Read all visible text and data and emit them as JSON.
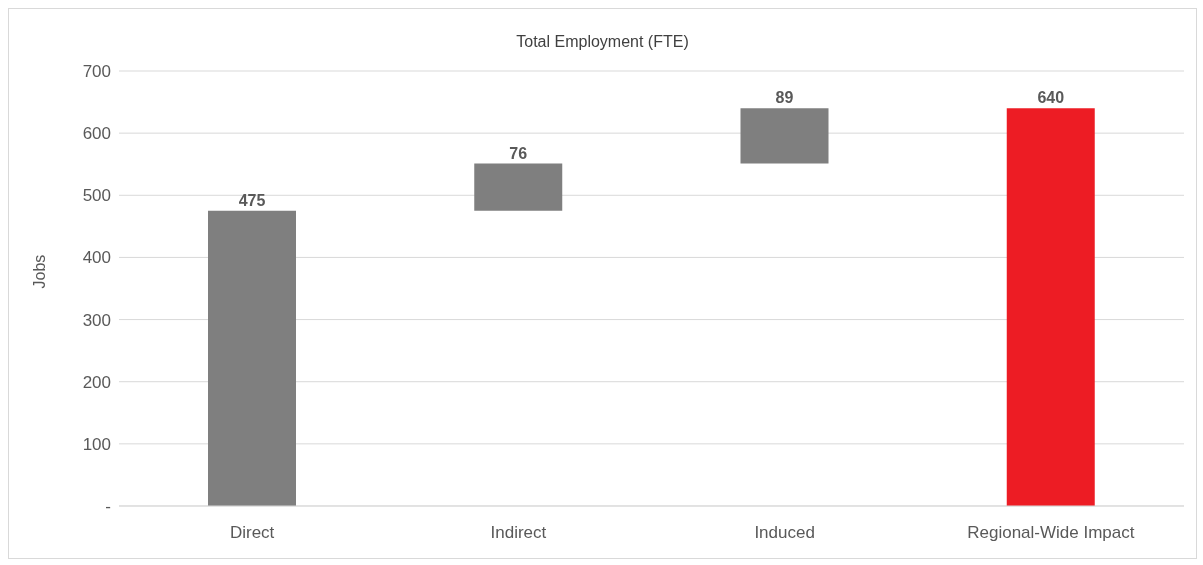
{
  "chart_data": {
    "type": "bar",
    "title": "Total Employment (FTE)",
    "ylabel": "Jobs",
    "categories": [
      "Direct",
      "Indirect",
      "Induced",
      "Regional-Wide Impact"
    ],
    "values": [
      475,
      76,
      89,
      640
    ],
    "base": [
      0,
      475,
      551,
      0
    ],
    "colors": [
      "#7f7f7f",
      "#7f7f7f",
      "#7f7f7f",
      "#ed1c24"
    ],
    "ylim": [
      0,
      700
    ],
    "yticks": [
      {
        "value": 0,
        "label": "-"
      },
      100,
      200,
      300,
      400,
      500,
      600,
      700
    ],
    "grid": "y",
    "data_labels": true
  }
}
